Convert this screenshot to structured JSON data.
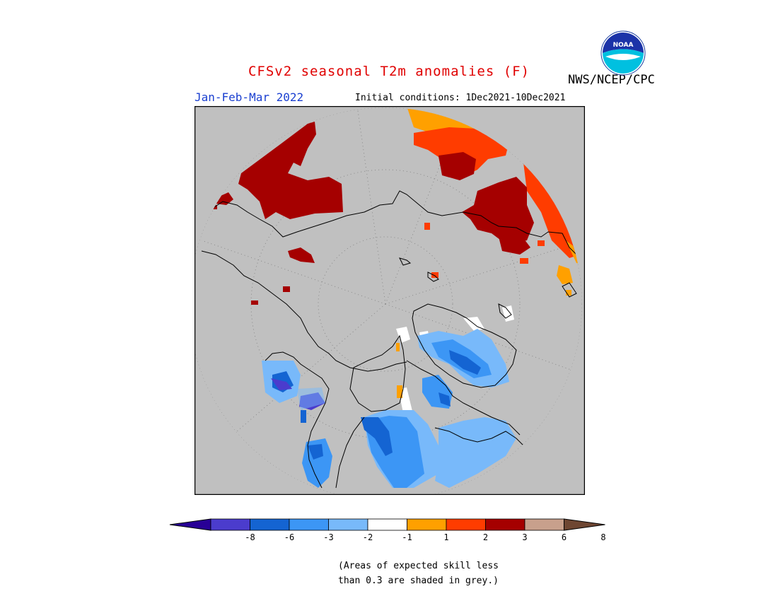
{
  "header": {
    "title": "CFSv2 seasonal T2m anomalies (F)",
    "period": "Jan-Feb-Mar 2022",
    "initial_conditions": "Initial conditions: 1Dec2021-10Dec2021",
    "organization": "NWS/NCEP/CPC",
    "logo_text": "NOAA"
  },
  "colors": {
    "background_grey": "#c0c0c0",
    "neg8": "#280096",
    "neg6": "#4b3ccd",
    "neg3": "#1464d2",
    "neg2": "#3c96f5",
    "neg1": "#78b9fa",
    "neutral": "#ffffff",
    "pos1": "#ffa000",
    "pos2": "#ff3c00",
    "pos3": "#a50000",
    "pos6": "#c8a08c",
    "pos8": "#6e4632"
  },
  "legend": {
    "labels": [
      "-8",
      "-6",
      "-3",
      "-2",
      "-1",
      "1",
      "2",
      "3",
      "6",
      "8"
    ],
    "bins": [
      "#280096",
      "#4b3ccd",
      "#1464d2",
      "#3c96f5",
      "#78b9fa",
      "#ffffff",
      "#ffa000",
      "#ff3c00",
      "#a50000",
      "#c8a08c",
      "#6e4632"
    ]
  },
  "note": {
    "line1": "(Areas of expected skill less",
    "line2": "than 0.3 are shaded in grey.)"
  }
}
